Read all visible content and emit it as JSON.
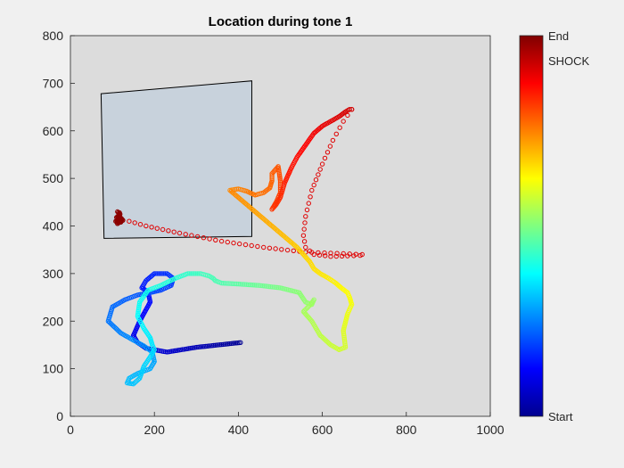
{
  "chart_data": {
    "type": "scatter",
    "title": "Location during tone 1",
    "xlabel": "",
    "ylabel": "",
    "xlim": [
      0,
      1000
    ],
    "ylim": [
      0,
      800
    ],
    "x_ticks": [
      0,
      200,
      400,
      600,
      800,
      1000
    ],
    "y_ticks": [
      0,
      100,
      200,
      300,
      400,
      500,
      600,
      700,
      800
    ],
    "grid": false,
    "colormap": "jet",
    "colorbar": {
      "position": "right",
      "labels": {
        "top": "End",
        "shock": "SHOCK",
        "bottom": "Start"
      }
    },
    "zone_polygon": {
      "label": "",
      "fill": "#c8d2dc",
      "x": [
        73,
        432,
        432,
        80
      ],
      "y": [
        678,
        705,
        378,
        374
      ]
    },
    "trajectory_waypoints": {
      "x": [
        405,
        300,
        230,
        180,
        160,
        150,
        165,
        190,
        185,
        170,
        180,
        200,
        230,
        245,
        240,
        215,
        190,
        160,
        130,
        100,
        90,
        120,
        150,
        175,
        195,
        200,
        190,
        160,
        140,
        135,
        150,
        165,
        175,
        190,
        200,
        195,
        190,
        175,
        160,
        165,
        185,
        215,
        250,
        280,
        310,
        330,
        340,
        345,
        360,
        400,
        450,
        500,
        545,
        560,
        575,
        580,
        572,
        555,
        575,
        595,
        620,
        640,
        655,
        650,
        660,
        670,
        665,
        660,
        645,
        632,
        615,
        595,
        580,
        570,
        555,
        540,
        520,
        500,
        480,
        460,
        440,
        420,
        400,
        380,
        400,
        420,
        440,
        460,
        475,
        480,
        480,
        490,
        495,
        500,
        500,
        490,
        480,
        490,
        500,
        510,
        525,
        540,
        560,
        580,
        600,
        620,
        640,
        655,
        665,
        670
      ],
      "y": [
        155,
        145,
        135,
        143,
        155,
        170,
        200,
        240,
        262,
        270,
        285,
        300,
        300,
        290,
        275,
        265,
        260,
        255,
        245,
        230,
        200,
        175,
        160,
        148,
        135,
        115,
        100,
        90,
        80,
        70,
        68,
        80,
        105,
        125,
        140,
        150,
        165,
        185,
        210,
        240,
        265,
        275,
        290,
        300,
        300,
        295,
        290,
        285,
        280,
        278,
        275,
        270,
        260,
        240,
        235,
        245,
        235,
        220,
        200,
        170,
        150,
        140,
        145,
        180,
        215,
        235,
        250,
        260,
        270,
        280,
        290,
        300,
        310,
        325,
        340,
        355,
        370,
        385,
        400,
        415,
        430,
        445,
        460,
        475,
        478,
        473,
        465,
        470,
        480,
        495,
        510,
        520,
        525,
        495,
        470,
        450,
        435,
        445,
        460,
        490,
        520,
        545,
        570,
        595,
        610,
        620,
        630,
        640,
        645,
        645
      ]
    },
    "dashed_return_path": {
      "x": [
        670,
        650,
        625,
        600,
        575,
        560,
        555,
        560,
        580,
        620,
        660,
        690,
        695,
        650,
        560,
        460,
        360,
        260,
        180,
        140,
        120,
        115
      ],
      "y": [
        645,
        620,
        580,
        530,
        475,
        420,
        380,
        355,
        340,
        336,
        337,
        338,
        340,
        342,
        345,
        355,
        368,
        385,
        400,
        410,
        415,
        420
      ]
    },
    "end_cluster": {
      "x": [
        112,
        118,
        110,
        122,
        108,
        120,
        115,
        125,
        112,
        117
      ],
      "y": [
        430,
        425,
        418,
        415,
        410,
        408,
        422,
        412,
        405,
        428
      ]
    }
  }
}
